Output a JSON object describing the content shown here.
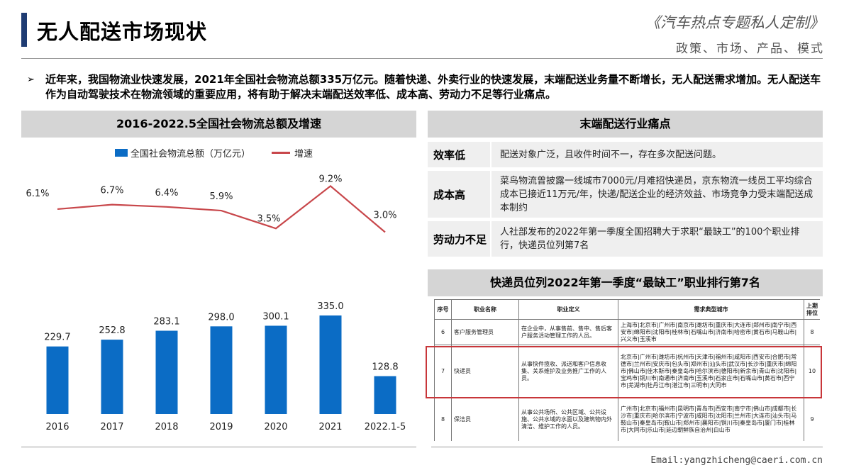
{
  "header": {
    "title": "无人配送市场现状",
    "brand_name": "《汽车热点专题私人定制》",
    "brand_sub": "政策、市场、产品、模式"
  },
  "intro": {
    "bullet": "➢",
    "text": "近年来，我国物流业快速发展，2021年全国社会物流总额335万亿元。随着快递、外卖行业的快速发展，末端配送业务量不断增长，无人配送需求增加。无人配送车作为自动驾驶技术在物流领域的重要应用，将有助于解决末端配送效率低、成本高、劳动力不足等行业痛点。"
  },
  "chart_panel": {
    "title": "2016-2022.5全国社会物流总额及增速",
    "legend_bar": "全国社会物流总额（万亿元）",
    "legend_line": "增速"
  },
  "chart_data": {
    "type": "bar",
    "title": "2016-2022.5全国社会物流总额及增速",
    "categories": [
      "2016",
      "2017",
      "2018",
      "2019",
      "2020",
      "2021",
      "2022.1-5"
    ],
    "series": [
      {
        "name": "全国社会物流总额（万亿元）",
        "type": "bar",
        "values": [
          229.7,
          252.8,
          283.1,
          298.0,
          300.1,
          335.0,
          128.8
        ],
        "labels": [
          "229.7",
          "252.8",
          "283.1",
          "298.0",
          "300.1",
          "335.0",
          "128.8"
        ],
        "color": "#0b6cc5"
      },
      {
        "name": "增速",
        "type": "line",
        "values": [
          6.1,
          6.7,
          6.4,
          5.9,
          3.5,
          9.2,
          3.0
        ],
        "labels": [
          "6.1%",
          "6.7%",
          "6.4%",
          "5.9%",
          "3.5%",
          "9.2%",
          "3.0%"
        ],
        "color": "#c8474b"
      }
    ],
    "grid": false,
    "legend_position": "top"
  },
  "pain_panel": {
    "title": "末端配送行业痛点",
    "rows": [
      {
        "label": "效率低",
        "desc": "配送对象广泛，且收件时间不一，存在多次配送问题。"
      },
      {
        "label": "成本高",
        "desc": "菜鸟物流曾披露一线城市7000元/月难招快递员，京东物流一线员工平均综合成本已接近11万元/年，快递/配送企业的经济效益、市场竞争力受末端配送成本制约"
      },
      {
        "label": "劳动力不足",
        "desc": "人社部发布的2022年第一季度全国招聘大于求职“最缺工”的100个职业排行，快递员位列第7名"
      }
    ]
  },
  "rank_panel": {
    "title": "快递员位列2022年第一季度“最缺工”职业排行第7名",
    "columns": [
      "序号",
      "职业名称",
      "职业定义",
      "需求典型城市",
      "上期排位"
    ],
    "rows": [
      {
        "no": "6",
        "name": "客户服务管理员",
        "definition": "在企业中，从事售前、售中、售后客户服务活动管理工作的人员。",
        "cities": "上海市|北京市|广州市|南京市|潍坊市|重庆市|大连市|郑州市|南宁市|西安市|绵阳市|沈阳市|桂林市|石嘴山市|济南市|哈密市|黄石市|马鞍山市|兴义市|玉溪市",
        "prev": "8"
      },
      {
        "no": "7",
        "name": "快递员",
        "definition": "从事快件揽收、派送和客户信息收集、关系维护及业务推广工作的人员。",
        "cities": "北京市|广州市|潍坊市|杭州市|天津市|福州市|咸阳市|西安市|合肥市|常德市|兰州市|安庆市|包头市|郑州市|汕头市|武汉市|长沙市|重庆市|绵阳市|佛山市|佳木斯市|秦皇岛市|哈尔滨市|德阳市|新余市|青山市|沈阳市|宝鸡市|铜川市|南通市|济南市|玉溪市|石家庄市|石嘴山市|黄石市|西宁市|芜湖市|牡丹江市|湛江市|三明市|大同市",
        "prev": "10"
      },
      {
        "no": "8",
        "name": "保洁员",
        "definition": "从事公共场所、公共区域、公共设施、公共水域的水面以及建筑物内外清洁、维护工作的人员。",
        "cities": "广州市|北京市|福州市|昆明市|青岛市|西安市|南宁市|佛山市|成都市|长沙市|重庆市|哈尔滨市|宁波市|咸阳市|沈阳市|兰州市|大连市|汕头市|马鞍山市|秦皇岛市|鞍山市|郑州市|襄阳市|铜川市|秦皇岛市|厦门市|桂林市|大同市|乐山市|延边朝鲜族自治州|白山市",
        "prev": "9"
      }
    ]
  },
  "footer": {
    "email": "Email:yangzhicheng@caeri.com.cn"
  }
}
